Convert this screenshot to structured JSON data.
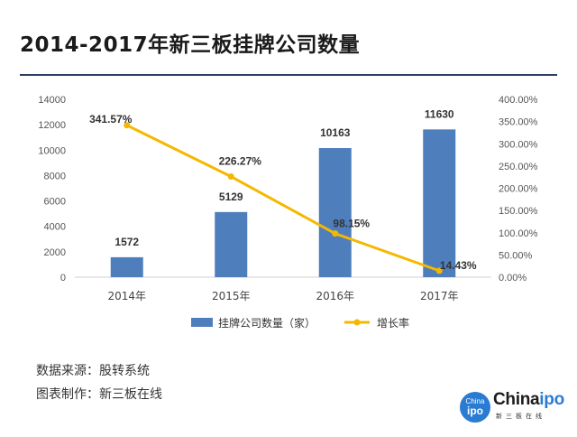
{
  "title": "2014-2017年新三板挂牌公司数量",
  "footer": {
    "source": "数据来源：股转系统",
    "maker": "图表制作：新三板在线"
  },
  "logo": {
    "circle_top": "China",
    "circle_bottom": "ipo",
    "word_main": "China",
    "word_accent": "ipo",
    "subtitle": "新三板在线"
  },
  "colors": {
    "bar": "#4f7ebc",
    "line": "#f5b800",
    "title_rule": "#2e3f63"
  },
  "chart_data": {
    "type": "bar",
    "categories": [
      "2014年",
      "2015年",
      "2016年",
      "2017年"
    ],
    "series": [
      {
        "name": "挂牌公司数量（家）",
        "type": "bar",
        "axis": "left",
        "values": [
          1572,
          5129,
          10163,
          11630
        ],
        "labels": [
          "1572",
          "5129",
          "10163",
          "11630"
        ]
      },
      {
        "name": "增长率",
        "type": "line",
        "axis": "right",
        "values": [
          341.57,
          226.27,
          98.15,
          14.43
        ],
        "labels": [
          "341.57%",
          "226.27%",
          "98.15%",
          "14.43%"
        ]
      }
    ],
    "y_left": {
      "min": 0,
      "max": 14000,
      "ticks": [
        "0",
        "2000",
        "4000",
        "6000",
        "8000",
        "10000",
        "12000",
        "14000"
      ]
    },
    "y_right": {
      "min": 0,
      "max": 400,
      "ticks": [
        "0.00%",
        "50.00%",
        "100.00%",
        "150.00%",
        "200.00%",
        "250.00%",
        "300.00%",
        "350.00%",
        "400.00%"
      ]
    },
    "grid": false,
    "legend_position": "bottom"
  }
}
